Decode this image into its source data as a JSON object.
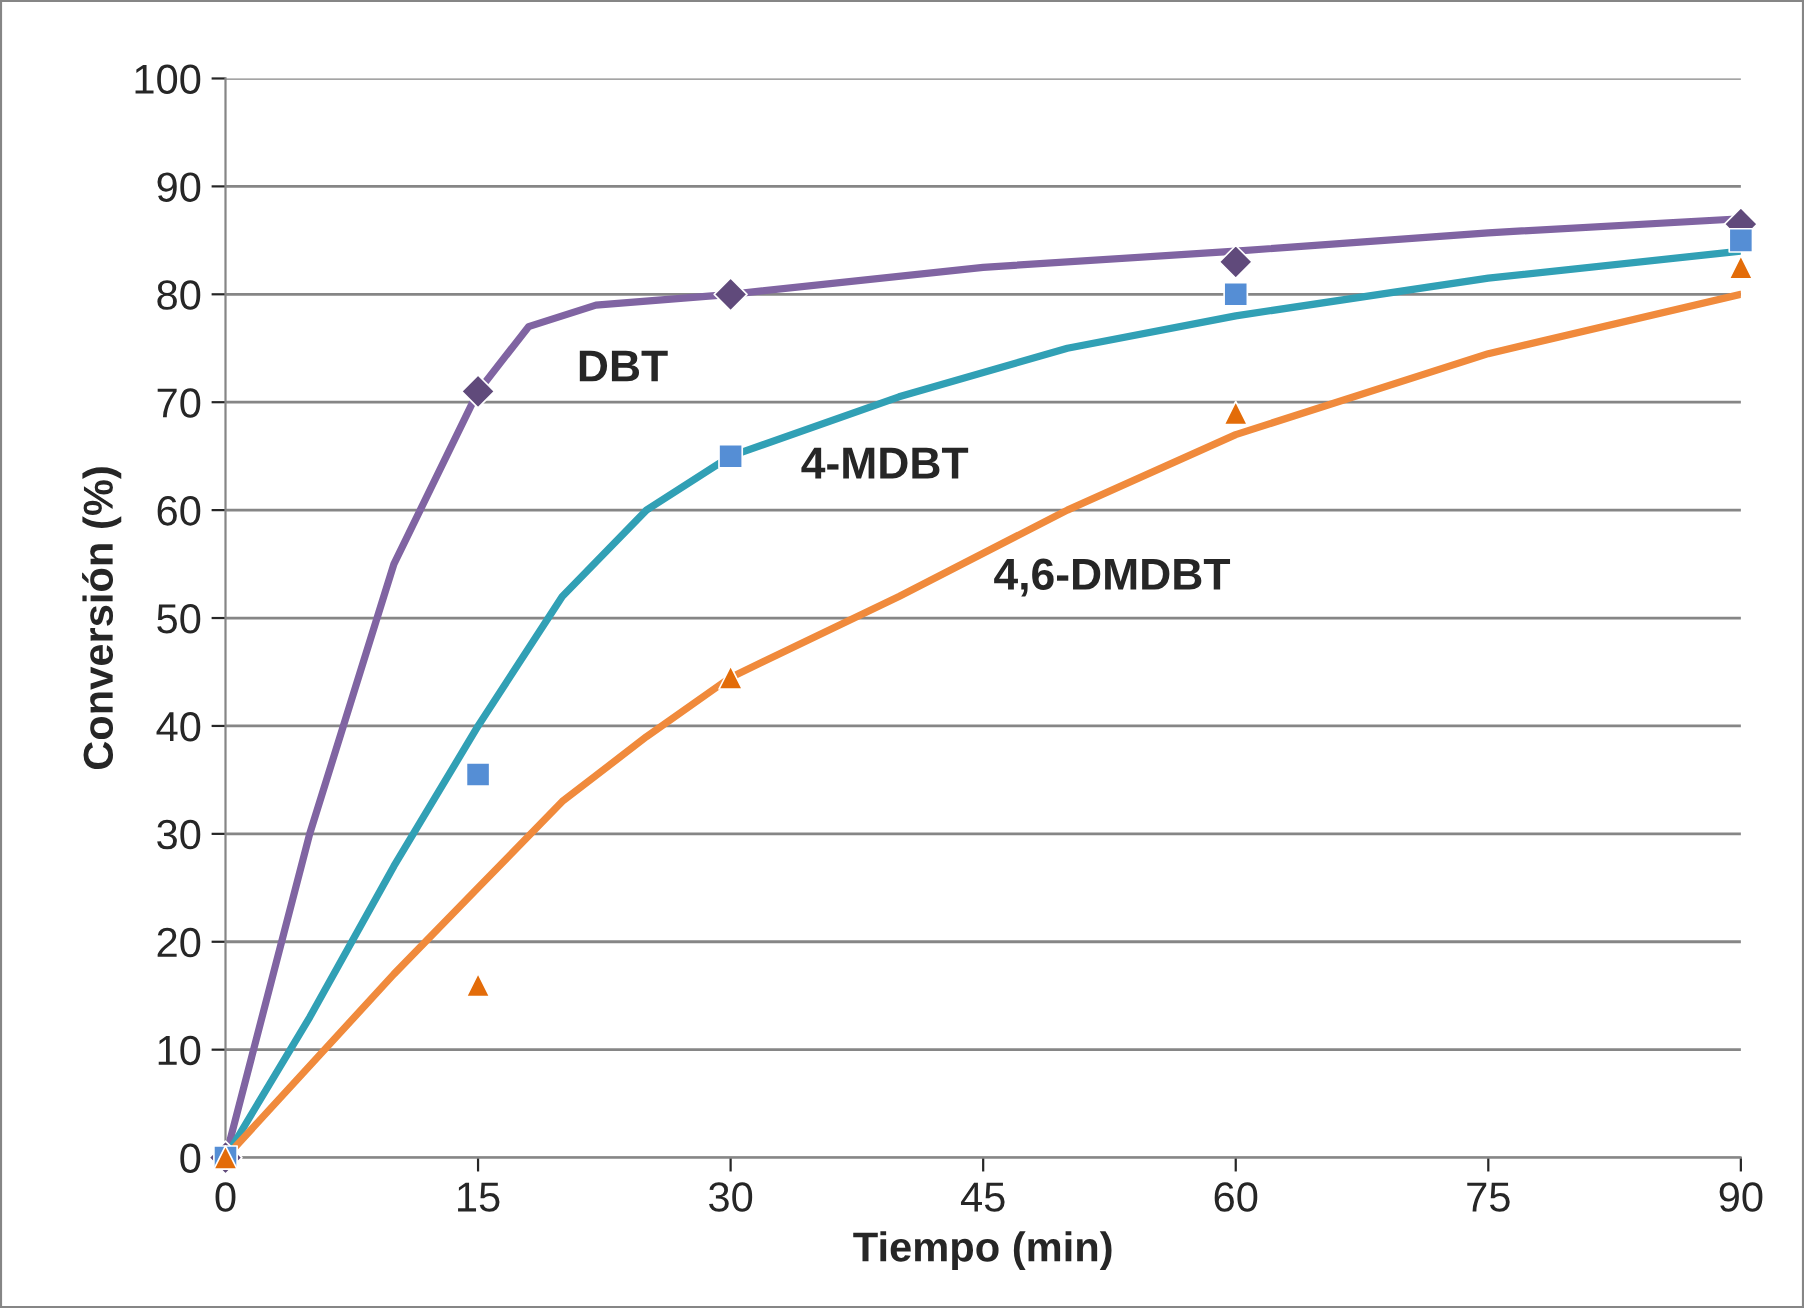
{
  "chart_data": {
    "type": "scatter",
    "xlabel": "Tiempo (min)",
    "ylabel": "Conversión (%)",
    "xlim": [
      0,
      90
    ],
    "xticks": [
      0,
      15,
      30,
      45,
      60,
      75,
      90
    ],
    "ylim": [
      0,
      100
    ],
    "yticks": [
      0,
      10,
      20,
      30,
      40,
      50,
      60,
      70,
      80,
      90,
      100
    ],
    "grid": "y",
    "series": [
      {
        "type": "line",
        "color": "#8064a2",
        "marker": "none",
        "line_style": "solid",
        "x": [
          0,
          5,
          10,
          15,
          18,
          22,
          30,
          45,
          60,
          75,
          90
        ],
        "values": [
          0,
          30,
          55,
          71,
          77,
          79,
          80,
          82.5,
          84,
          85.7,
          87
        ]
      },
      {
        "type": "line",
        "color": "#31a0b5",
        "marker": "none",
        "line_style": "solid",
        "x": [
          0,
          5,
          10,
          15,
          20,
          25,
          30,
          40,
          50,
          60,
          75,
          90
        ],
        "values": [
          0,
          13,
          27,
          40,
          52,
          60,
          65,
          70.5,
          75,
          78,
          81.5,
          84
        ]
      },
      {
        "type": "line",
        "color": "#f08a3c",
        "marker": "none",
        "line_style": "solid",
        "x": [
          0,
          10,
          15,
          20,
          25,
          30,
          40,
          50,
          60,
          75,
          90
        ],
        "values": [
          0,
          17,
          25,
          33,
          39,
          44.5,
          52,
          60,
          67,
          74.5,
          80
        ]
      },
      {
        "color": "#604a7b",
        "marker": "diamond",
        "x": [
          0,
          15,
          30,
          60,
          90
        ],
        "values": [
          0,
          71,
          80,
          83,
          86.5
        ]
      },
      {
        "color": "#558ed5",
        "marker": "square",
        "x": [
          0,
          15,
          30,
          60,
          90
        ],
        "values": [
          0,
          35.5,
          65,
          80,
          85
        ]
      },
      {
        "color": "#e36c09",
        "marker": "triangle",
        "x": [
          0,
          15,
          30,
          60,
          90
        ],
        "values": [
          0,
          16,
          44.5,
          69,
          82.5
        ]
      }
    ],
    "annotations": [
      "DBT",
      "4-MDBT",
      "4,6-DMDBT"
    ]
  }
}
